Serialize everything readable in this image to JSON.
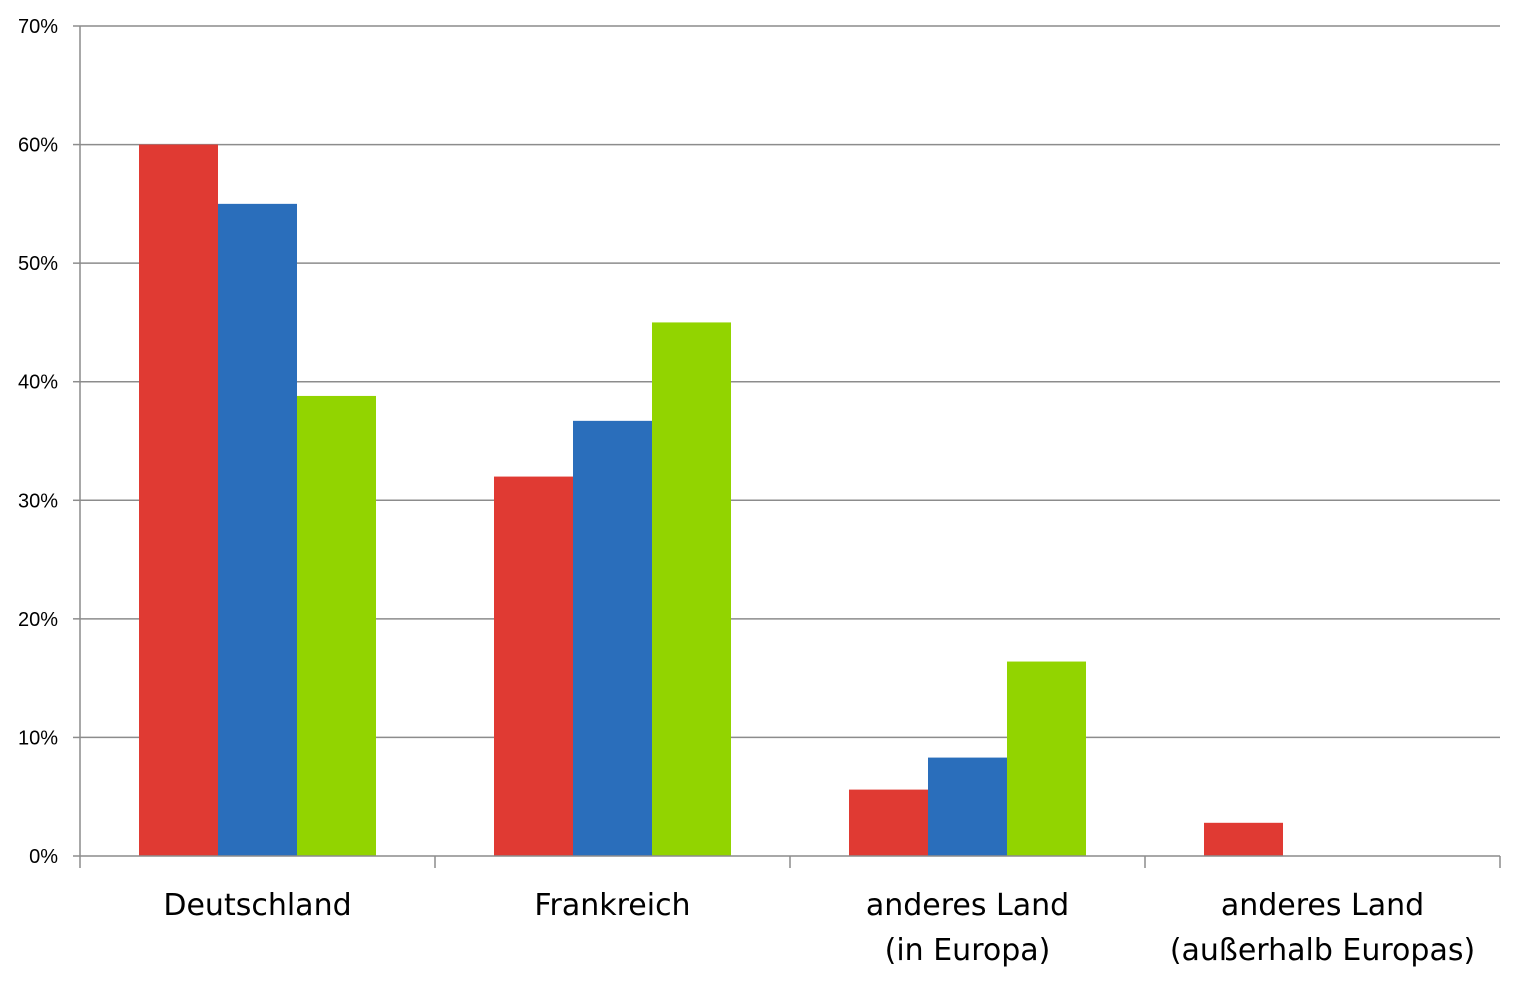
{
  "chart_data": {
    "type": "bar",
    "title": "",
    "xlabel": "",
    "ylabel": "",
    "ylim": [
      0,
      0.7
    ],
    "y_ticks": [
      0,
      0.1,
      0.2,
      0.3,
      0.4,
      0.5,
      0.6,
      0.7
    ],
    "y_tick_labels": [
      "0%",
      "10%",
      "20%",
      "30%",
      "40%",
      "50%",
      "60%",
      "70%"
    ],
    "grid": true,
    "legend": "none",
    "categories": [
      [
        "Deutschland"
      ],
      [
        "Frankreich"
      ],
      [
        "anderes Land",
        "(in Europa)"
      ],
      [
        "anderes Land",
        "(außerhalb Europas)"
      ]
    ],
    "series": [
      {
        "color": "#e03a33",
        "values": [
          0.6,
          0.32,
          0.056,
          0.028
        ]
      },
      {
        "color": "#2a6ebb",
        "values": [
          0.55,
          0.367,
          0.083,
          0
        ]
      },
      {
        "color": "#92d400",
        "values": [
          0.388,
          0.45,
          0.164,
          0
        ]
      }
    ]
  }
}
